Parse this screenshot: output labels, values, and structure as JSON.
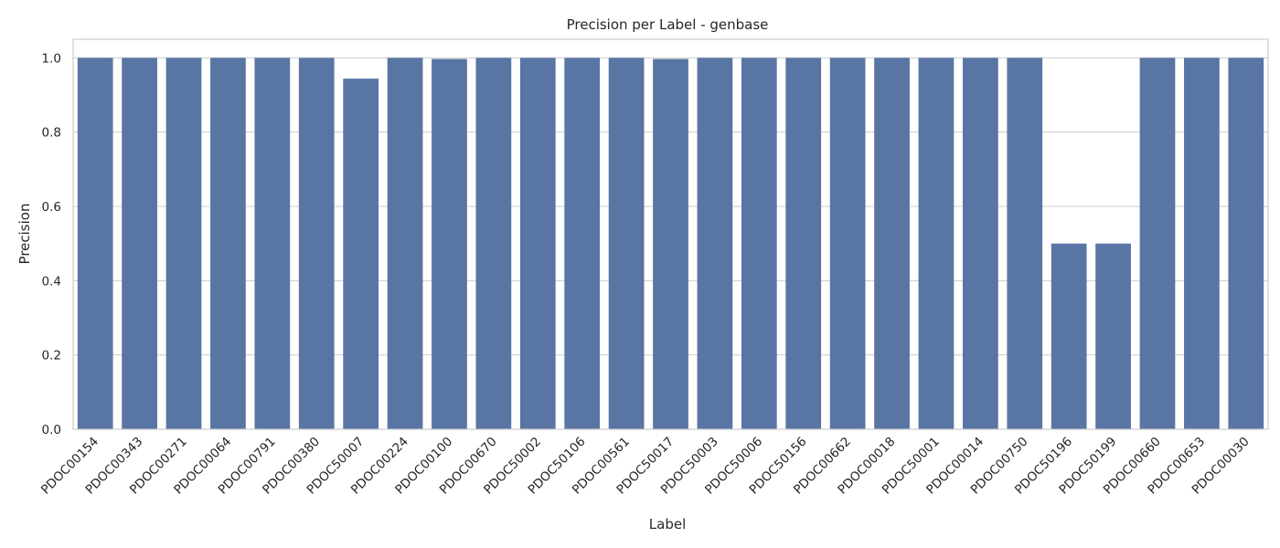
{
  "chart_data": {
    "type": "bar",
    "title": "Precision per Label - genbase",
    "xlabel": "Label",
    "ylabel": "Precision",
    "ylim": [
      0,
      1.05
    ],
    "yticks": [
      0.0,
      0.2,
      0.4,
      0.6,
      0.8,
      1.0
    ],
    "ytick_labels": [
      "0.0",
      "0.2",
      "0.4",
      "0.6",
      "0.8",
      "1.0"
    ],
    "grid": "horizontal",
    "bar_color": "#5875a4",
    "categories": [
      "PDOC00154",
      "PDOC00343",
      "PDOC00271",
      "PDOC00064",
      "PDOC00791",
      "PDOC00380",
      "PDOC50007",
      "PDOC00224",
      "PDOC00100",
      "PDOC00670",
      "PDOC50002",
      "PDOC50106",
      "PDOC00561",
      "PDOC50017",
      "PDOC50003",
      "PDOC50006",
      "PDOC50156",
      "PDOC00662",
      "PDOC00018",
      "PDOC50001",
      "PDOC00014",
      "PDOC00750",
      "PDOC50196",
      "PDOC50199",
      "PDOC00660",
      "PDOC00653",
      "PDOC00030"
    ],
    "values": [
      1.0,
      1.0,
      1.0,
      1.0,
      1.0,
      1.0,
      0.944,
      1.0,
      0.997,
      1.0,
      1.0,
      1.0,
      1.0,
      0.997,
      1.0,
      1.0,
      1.0,
      1.0,
      1.0,
      1.0,
      1.0,
      1.0,
      0.5,
      0.5,
      1.0,
      1.0,
      1.0
    ]
  }
}
